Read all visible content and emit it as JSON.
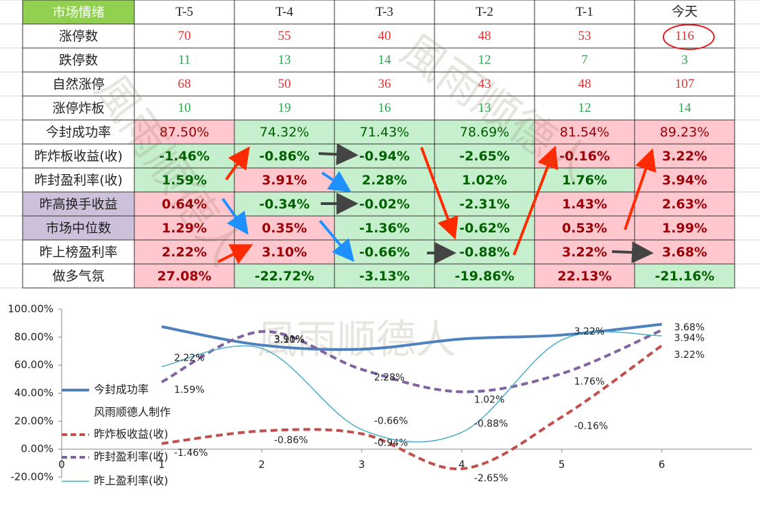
{
  "table": {
    "header": [
      "市场情绪",
      "T-5",
      "T-4",
      "T-3",
      "T-2",
      "T-1",
      "今天"
    ],
    "rows": [
      [
        "涨停数",
        "70",
        "55",
        "40",
        "48",
        "53",
        "116"
      ],
      [
        "跌停数",
        "11",
        "13",
        "14",
        "12",
        "7",
        "3"
      ],
      [
        "自然涨停",
        "68",
        "50",
        "36",
        "43",
        "48",
        "107"
      ],
      [
        "涨停炸板",
        "10",
        "19",
        "16",
        "13",
        "12",
        "14"
      ],
      [
        "今封成功率",
        "87.50%",
        "74.32%",
        "71.43%",
        "78.69%",
        "81.54%",
        "89.23%"
      ],
      [
        "昨炸板收益(收)",
        "-1.46%",
        "-0.86%",
        "-0.94%",
        "-2.65%",
        "-0.16%",
        "3.22%"
      ],
      [
        "昨封盈利率(收)",
        "1.59%",
        "3.91%",
        "2.28%",
        "1.02%",
        "1.76%",
        "3.94%"
      ],
      [
        "昨高换手收益",
        "0.64%",
        "-0.34%",
        "-0.02%",
        "-2.31%",
        "1.43%",
        "2.63%"
      ],
      [
        "市场中位数",
        "1.29%",
        "0.35%",
        "-1.36%",
        "-0.62%",
        "0.53%",
        "1.99%"
      ],
      [
        "昨上榜盈利率",
        "2.22%",
        "3.10%",
        "-0.66%",
        "-0.88%",
        "3.22%",
        "3.68%"
      ],
      [
        "做多气氛",
        "27.08%",
        "-22.72%",
        "-3.13%",
        "-19.86%",
        "22.13%",
        "-21.16%"
      ]
    ]
  },
  "watermark": "風雨顺德人",
  "chart_data": {
    "type": "line",
    "x": [
      1,
      2,
      3,
      4,
      5,
      6
    ],
    "xlim": [
      0,
      6.9
    ],
    "xticks": [
      0,
      1,
      2,
      3,
      4,
      5,
      6
    ],
    "ylim": [
      -20,
      100
    ],
    "yticks": [
      {
        "value": -20,
        "label": "-20.00%"
      },
      {
        "value": 0,
        "label": "0.00%"
      },
      {
        "value": 20,
        "label": "20.00%"
      },
      {
        "value": 40,
        "label": "40.00%"
      },
      {
        "value": 60,
        "label": "60.00%"
      },
      {
        "value": 80,
        "label": "80.00%"
      },
      {
        "value": 100,
        "label": "100.00%"
      }
    ],
    "legend": "left",
    "legend_note": "风雨顺德人制作",
    "series": [
      {
        "name": "今封成功率",
        "color": "#4f81bd",
        "style": "solid",
        "values": [
          87.5,
          74.32,
          71.43,
          78.69,
          81.54,
          89.23
        ]
      },
      {
        "name": "昨炸板收益(收)",
        "color": "#c0504d",
        "style": "dashed",
        "values": [
          4,
          13,
          11,
          -14,
          23,
          74
        ],
        "labels": [
          "-1.46%",
          "-0.86%",
          "-0.94%",
          "-2.65%",
          "-0.16%",
          "3.22%"
        ]
      },
      {
        "name": "昨封盈利率(收)",
        "color": "#8064a2",
        "style": "dashed",
        "values": [
          48,
          84,
          57,
          41,
          54,
          85
        ],
        "labels": [
          "1.59%",
          "3.91%",
          "2.28%",
          "1.02%",
          "1.76%",
          "3.94%"
        ]
      },
      {
        "name": "昨上盈利率(收)",
        "color": "#4bacc6",
        "style": "thin",
        "values": [
          59,
          72,
          14,
          12,
          78,
          81
        ],
        "labels": [
          "2.22%",
          "3.10%",
          "-0.66%",
          "-0.88%",
          "3.22%",
          "3.68%"
        ]
      }
    ]
  }
}
